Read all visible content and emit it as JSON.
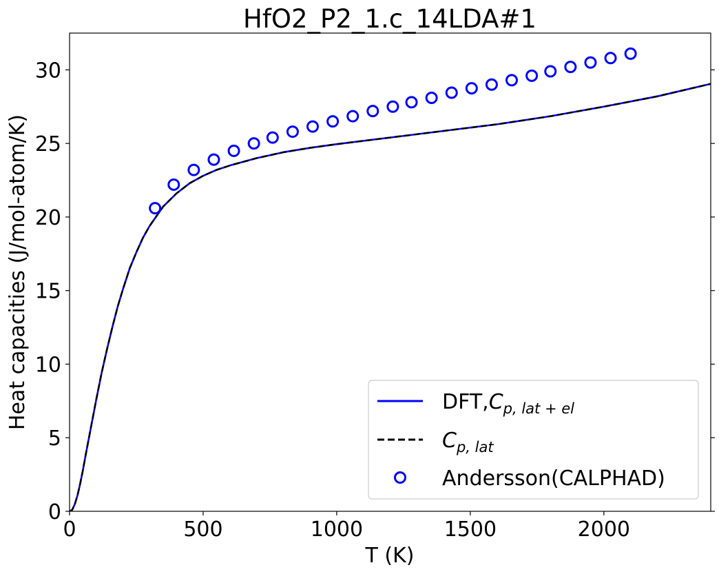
{
  "chart_data": {
    "type": "line",
    "title": "HfO2_P2_1.c_14LDA#1",
    "xlabel": "T (K)",
    "ylabel": "Heat capacities (J/mol-atom/K)",
    "xlim": [
      0,
      2400
    ],
    "ylim": [
      0,
      32.5
    ],
    "xticks": [
      0,
      500,
      1000,
      1500,
      2000
    ],
    "yticks": [
      0,
      5,
      10,
      15,
      20,
      25,
      30
    ],
    "grid": false,
    "legend_position": "bottom-right",
    "series": [
      {
        "name": "DFT,",
        "name_math": "C",
        "name_sub": "p, lat + el",
        "style": "solid",
        "color": "#0000ff",
        "x": [
          0,
          10,
          20,
          30,
          40,
          50,
          60,
          80,
          100,
          120,
          140,
          160,
          180,
          200,
          225,
          250,
          275,
          300,
          350,
          400,
          450,
          500,
          550,
          600,
          700,
          800,
          900,
          1000,
          1200,
          1400,
          1600,
          1800,
          2000,
          2200,
          2400
        ],
        "y": [
          0,
          0.1,
          0.5,
          1.1,
          1.9,
          2.8,
          3.8,
          5.7,
          7.6,
          9.4,
          11.0,
          12.5,
          13.9,
          15.1,
          16.5,
          17.6,
          18.6,
          19.4,
          20.7,
          21.6,
          22.3,
          22.8,
          23.2,
          23.5,
          24.0,
          24.4,
          24.7,
          24.95,
          25.4,
          25.85,
          26.3,
          26.85,
          27.5,
          28.2,
          29.05
        ]
      },
      {
        "name": "",
        "name_math": "C",
        "name_sub": "p, lat",
        "style": "dashed",
        "color": "#000000",
        "x": [
          0,
          10,
          20,
          30,
          40,
          50,
          60,
          80,
          100,
          120,
          140,
          160,
          180,
          200,
          225,
          250,
          275,
          300,
          350,
          400,
          450,
          500,
          550,
          600,
          700,
          800,
          900,
          1000,
          1200,
          1400,
          1600,
          1800,
          2000,
          2200,
          2400
        ],
        "y": [
          0,
          0.1,
          0.5,
          1.1,
          1.9,
          2.8,
          3.8,
          5.7,
          7.6,
          9.4,
          11.0,
          12.5,
          13.9,
          15.1,
          16.5,
          17.6,
          18.6,
          19.4,
          20.7,
          21.6,
          22.3,
          22.8,
          23.2,
          23.5,
          24.0,
          24.4,
          24.7,
          24.95,
          25.4,
          25.85,
          26.3,
          26.85,
          27.5,
          28.2,
          29.05
        ]
      },
      {
        "name": "Andersson(CALPHAD)",
        "style": "markers",
        "marker": "open-circle",
        "color": "#0000ff",
        "x": [
          320,
          390,
          465,
          540,
          615,
          690,
          760,
          835,
          910,
          985,
          1060,
          1135,
          1210,
          1280,
          1355,
          1430,
          1505,
          1580,
          1655,
          1730,
          1800,
          1875,
          1950,
          2025,
          2100
        ],
        "y": [
          20.6,
          22.2,
          23.2,
          23.9,
          24.5,
          25.0,
          25.4,
          25.8,
          26.15,
          26.5,
          26.85,
          27.2,
          27.5,
          27.8,
          28.1,
          28.45,
          28.75,
          29.0,
          29.3,
          29.6,
          29.9,
          30.2,
          30.5,
          30.8,
          31.1
        ]
      }
    ]
  }
}
